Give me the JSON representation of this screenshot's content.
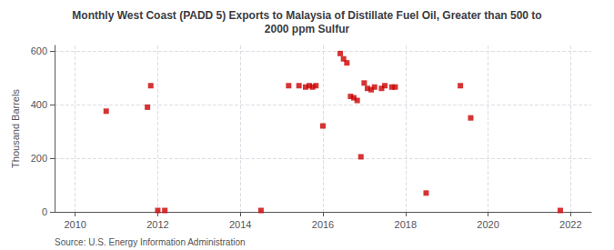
{
  "chart_data": {
    "type": "scatter",
    "title": "Monthly West Coast (PADD 5) Exports to Malaysia of Distillate Fuel Oil, Greater than 500 to\n2000 ppm Sulfur",
    "ylabel": "Thousand Barrels",
    "annotations": [
      "Source: U.S. Energy Information Administration"
    ],
    "color": "#cc0000",
    "marker": "square",
    "grid": true,
    "xlim": [
      2009.5,
      2022.5
    ],
    "ylim": [
      0,
      620
    ],
    "xticks": [
      2010,
      2012,
      2014,
      2016,
      2018,
      2020,
      2022
    ],
    "yticks": [
      0,
      200,
      400,
      600
    ],
    "x": [
      2010.75,
      2011.75,
      2011.83,
      2012.0,
      2012.17,
      2014.5,
      2015.17,
      2015.42,
      2015.58,
      2015.67,
      2015.75,
      2015.83,
      2016.0,
      2016.42,
      2016.5,
      2016.58,
      2016.67,
      2016.75,
      2016.83,
      2016.92,
      2017.0,
      2017.08,
      2017.17,
      2017.25,
      2017.42,
      2017.5,
      2017.67,
      2017.75,
      2018.5,
      2019.33,
      2019.58,
      2021.75
    ],
    "values": [
      375,
      390,
      470,
      5,
      5,
      5,
      470,
      470,
      465,
      470,
      465,
      470,
      320,
      590,
      570,
      555,
      430,
      425,
      415,
      205,
      480,
      460,
      455,
      465,
      460,
      470,
      465,
      465,
      70,
      470,
      350,
      5
    ]
  }
}
